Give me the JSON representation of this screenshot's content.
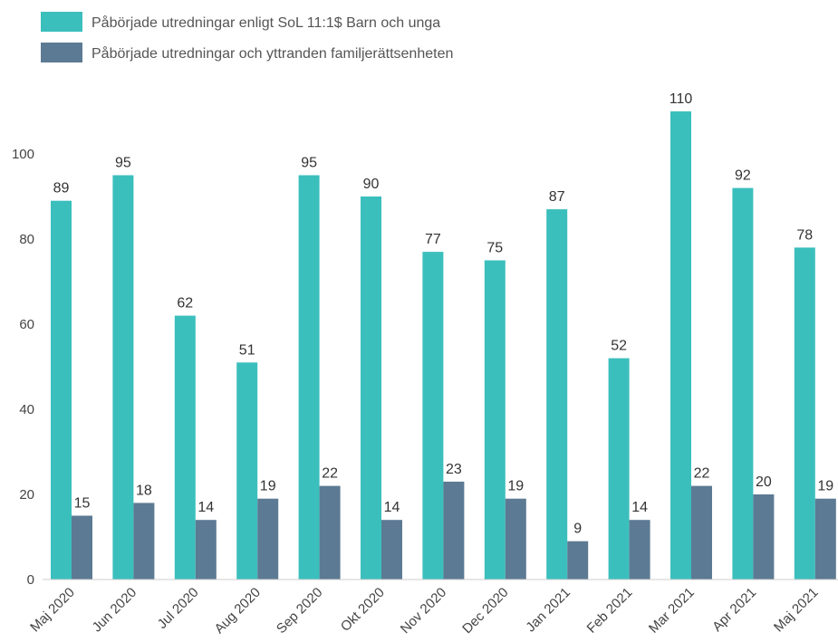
{
  "chart_data": {
    "type": "bar",
    "title": "",
    "xlabel": "",
    "ylabel": "",
    "categories": [
      "Maj 2020",
      "Jun 2020",
      "Jul 2020",
      "Aug 2020",
      "Sep 2020",
      "Okt 2020",
      "Nov 2020",
      "Dec 2020",
      "Jan 2021",
      "Feb 2021",
      "Mar 2021",
      "Apr 2021",
      "Maj 2021"
    ],
    "series": [
      {
        "name": "Påbörjade utredningar enligt SoL 11:1$ Barn och unga",
        "color": "#3bbfbd",
        "values": [
          89,
          95,
          62,
          51,
          95,
          90,
          77,
          75,
          87,
          52,
          110,
          92,
          78
        ]
      },
      {
        "name": "Påbörjade utredningar och yttranden familjerättsenheten",
        "color": "#5c7a93",
        "values": [
          15,
          18,
          14,
          19,
          22,
          14,
          23,
          19,
          9,
          14,
          22,
          20,
          19
        ]
      }
    ],
    "yticks": [
      0,
      20,
      40,
      60,
      80,
      100
    ],
    "ylim": [
      0,
      120
    ],
    "grid": false,
    "legend_position": "top-left",
    "data_labels": true
  }
}
